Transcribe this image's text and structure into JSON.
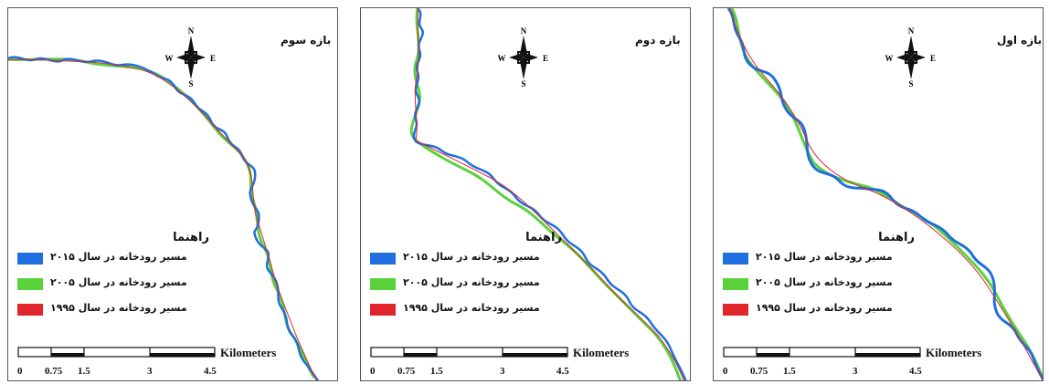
{
  "colors": {
    "y2015": "#1f6fe0",
    "y2005": "#5ad23c",
    "y1995": "#e0262a"
  },
  "compass": {
    "n": "N",
    "s": "S",
    "e": "E",
    "w": "W"
  },
  "legend": {
    "title": "راهنما",
    "items": [
      {
        "label": "مسیر رودخانه در سال ۲۰۱۵",
        "color": "#1f6fe0"
      },
      {
        "label": "مسیر رودخانه در سال ۲۰۰۵",
        "color": "#5ad23c"
      },
      {
        "label": "مسیر رودخانه در سال ۱۹۹۵",
        "color": "#e0262a"
      }
    ]
  },
  "scale": {
    "unit": "Kilometers",
    "ticks": [
      "0",
      "0.75",
      "1.5",
      "3",
      "4.5"
    ]
  },
  "panels": [
    {
      "title": "بازه سوم"
    },
    {
      "title": "بازه دوم"
    },
    {
      "title": "بازه اول"
    }
  ]
}
